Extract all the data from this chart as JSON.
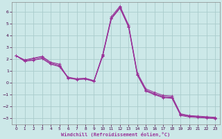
{
  "background_color": "#cce8e8",
  "grid_color": "#aacccc",
  "line_color": "#993399",
  "xlabel": "Windchill (Refroidissement éolien,°C)",
  "xlim": [
    -0.5,
    23.5
  ],
  "ylim": [
    -3.5,
    6.8
  ],
  "xticks": [
    0,
    1,
    2,
    3,
    4,
    5,
    6,
    7,
    8,
    9,
    10,
    11,
    12,
    13,
    14,
    15,
    16,
    17,
    18,
    19,
    20,
    21,
    22,
    23
  ],
  "yticks": [
    -3,
    -2,
    -1,
    0,
    1,
    2,
    3,
    4,
    5,
    6
  ],
  "series": [
    {
      "x": [
        0,
        1,
        2,
        3,
        4,
        5,
        6,
        7,
        8,
        9,
        10,
        11,
        12,
        13,
        14,
        15,
        16,
        17,
        18,
        19,
        20,
        21,
        22,
        23
      ],
      "y": [
        2.3,
        1.95,
        2.1,
        2.25,
        1.75,
        1.6,
        0.4,
        0.35,
        0.4,
        0.2,
        2.4,
        5.6,
        6.5,
        4.9,
        0.85,
        -0.5,
        -0.8,
        -1.05,
        -1.1,
        -2.6,
        -2.75,
        -2.8,
        -2.85,
        -2.9
      ]
    },
    {
      "x": [
        0,
        1,
        2,
        3,
        4,
        5,
        6,
        7,
        8,
        9,
        10,
        11,
        12,
        13,
        14,
        15,
        16,
        17,
        18,
        19,
        20,
        21,
        22,
        23
      ],
      "y": [
        2.3,
        1.9,
        2.05,
        2.2,
        1.7,
        1.5,
        0.45,
        0.3,
        0.35,
        0.15,
        2.35,
        5.5,
        6.4,
        4.8,
        0.75,
        -0.6,
        -0.9,
        -1.15,
        -1.2,
        -2.65,
        -2.8,
        -2.85,
        -2.9,
        -2.95
      ]
    },
    {
      "x": [
        0,
        1,
        2,
        3,
        4,
        5,
        6,
        7,
        8,
        9,
        10,
        11,
        12,
        13,
        14,
        15,
        16,
        17,
        18,
        19,
        20,
        21,
        22,
        23
      ],
      "y": [
        2.3,
        1.85,
        1.95,
        2.1,
        1.62,
        1.42,
        0.5,
        0.35,
        0.38,
        0.18,
        2.3,
        5.45,
        6.35,
        4.75,
        0.7,
        -0.65,
        -0.95,
        -1.2,
        -1.25,
        -2.7,
        -2.82,
        -2.88,
        -2.93,
        -2.98
      ]
    },
    {
      "x": [
        0,
        1,
        2,
        3,
        4,
        5,
        6,
        7,
        8,
        9,
        10,
        11,
        12,
        13,
        14,
        15,
        16,
        17,
        18,
        19,
        20,
        21,
        22,
        23
      ],
      "y": [
        2.3,
        1.82,
        1.92,
        2.05,
        1.58,
        1.38,
        0.42,
        0.28,
        0.32,
        0.12,
        2.25,
        5.4,
        6.3,
        4.7,
        0.65,
        -0.7,
        -1.0,
        -1.25,
        -1.3,
        -2.75,
        -2.88,
        -2.92,
        -2.97,
        -3.02
      ]
    }
  ]
}
